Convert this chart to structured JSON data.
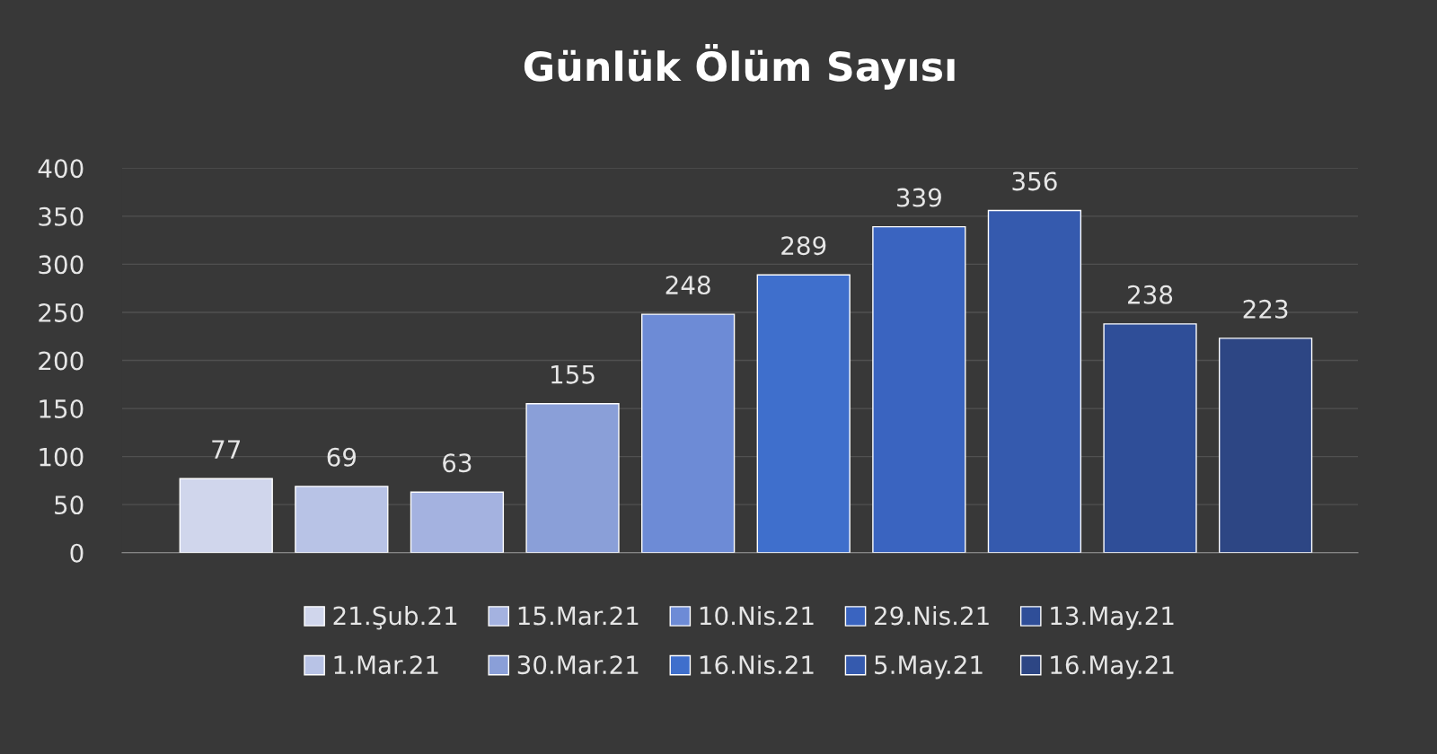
{
  "chart_data": {
    "type": "bar",
    "title": "Günlük Ölüm Sayısı",
    "categories": [
      null,
      null,
      null,
      null,
      null,
      null,
      null,
      null,
      null,
      null
    ],
    "series": [
      {
        "name": "21.Şub.21",
        "color": "#d0d6ec",
        "values": [
          77,
          null,
          null,
          null,
          null,
          null,
          null,
          null,
          null,
          null
        ]
      },
      {
        "name": "1.Mar.21",
        "color": "#b8c3e6",
        "values": [
          null,
          69,
          null,
          null,
          null,
          null,
          null,
          null,
          null,
          null
        ]
      },
      {
        "name": "15.Mar.21",
        "color": "#a4b2e0",
        "values": [
          null,
          null,
          63,
          null,
          null,
          null,
          null,
          null,
          null,
          null
        ]
      },
      {
        "name": "30.Mar.21",
        "color": "#8a9fd8",
        "values": [
          null,
          null,
          null,
          155,
          null,
          null,
          null,
          null,
          null,
          null
        ]
      },
      {
        "name": "10.Nis.21",
        "color": "#6d8bd6",
        "values": [
          null,
          null,
          null,
          null,
          248,
          null,
          null,
          null,
          null,
          null
        ]
      },
      {
        "name": "16.Nis.21",
        "color": "#3f6fcc",
        "values": [
          null,
          null,
          null,
          null,
          null,
          289,
          null,
          null,
          null,
          null
        ]
      },
      {
        "name": "29.Nis.21",
        "color": "#3a64c0",
        "values": [
          null,
          null,
          null,
          null,
          null,
          null,
          339,
          null,
          null,
          null
        ]
      },
      {
        "name": "5.May.21",
        "color": "#355aae",
        "values": [
          null,
          null,
          null,
          null,
          null,
          null,
          null,
          356,
          null,
          null
        ]
      },
      {
        "name": "13.May.21",
        "color": "#2f4e98",
        "values": [
          null,
          null,
          null,
          null,
          null,
          null,
          null,
          null,
          238,
          null
        ]
      },
      {
        "name": "16.May.21",
        "color": "#2d4684",
        "values": [
          null,
          null,
          null,
          null,
          null,
          null,
          null,
          null,
          null,
          223
        ]
      }
    ],
    "ylim": [
      0,
      400
    ],
    "yticks": [
      0,
      50,
      100,
      150,
      200,
      250,
      300,
      350,
      400
    ],
    "grid": "y",
    "legend": "bottom",
    "data_labels": true
  }
}
